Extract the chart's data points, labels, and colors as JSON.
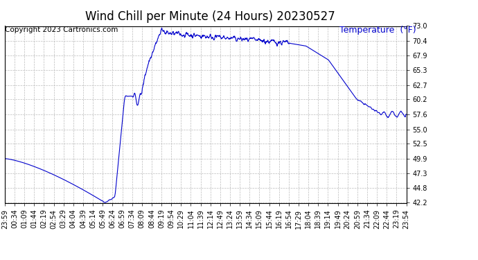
{
  "title": "Wind Chill per Minute (24 Hours) 20230527",
  "ylabel_text": "Temperature  (°F)",
  "copyright_text": "Copyright 2023 Cartronics.com",
  "line_color": "#0000cc",
  "ylabel_color": "#0000cc",
  "background_color": "#ffffff",
  "grid_color": "#bbbbbb",
  "ylim": [
    42.2,
    73.0
  ],
  "yticks": [
    42.2,
    44.8,
    47.3,
    49.9,
    52.5,
    55.0,
    57.6,
    60.2,
    62.7,
    65.3,
    67.9,
    70.4,
    73.0
  ],
  "x_tick_labels": [
    "23:59",
    "00:34",
    "01:09",
    "01:44",
    "02:19",
    "02:54",
    "03:29",
    "04:04",
    "04:39",
    "05:14",
    "05:49",
    "06:24",
    "06:59",
    "07:34",
    "08:09",
    "08:44",
    "09:19",
    "09:54",
    "10:29",
    "11:04",
    "11:39",
    "12:14",
    "12:49",
    "13:24",
    "13:59",
    "14:34",
    "15:09",
    "15:44",
    "16:19",
    "16:54",
    "17:29",
    "18:04",
    "18:39",
    "19:14",
    "19:49",
    "20:24",
    "20:59",
    "21:34",
    "22:09",
    "22:44",
    "23:19",
    "23:54"
  ],
  "title_fontsize": 12,
  "label_fontsize": 9,
  "tick_fontsize": 7,
  "copyright_fontsize": 7.5
}
